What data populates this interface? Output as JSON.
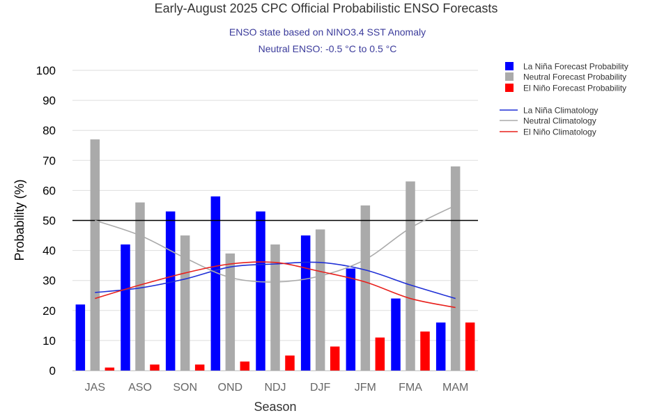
{
  "chart_data": {
    "type": "bar",
    "title": "Early-August 2025 CPC Official Probabilistic ENSO Forecasts",
    "subtitle_lines": [
      "ENSO state based on NINO3.4 SST Anomaly",
      "Neutral ENSO: -0.5 °C to 0.5 °C"
    ],
    "xlabel": "Season",
    "ylabel": "Probability (%)",
    "ylim": [
      0,
      100
    ],
    "yticks": [
      0,
      10,
      20,
      30,
      40,
      50,
      60,
      70,
      80,
      90,
      100
    ],
    "reference_line": 50,
    "categories": [
      "JAS",
      "ASO",
      "SON",
      "OND",
      "NDJ",
      "DJF",
      "JFM",
      "FMA",
      "MAM"
    ],
    "series": [
      {
        "name": "La Niña Forecast Probability",
        "kind": "bar",
        "color": "#0000ff",
        "values": [
          22,
          42,
          53,
          58,
          53,
          45,
          34,
          24,
          16
        ]
      },
      {
        "name": "Neutral Forecast Probability",
        "kind": "bar",
        "color": "#aaaaaa",
        "values": [
          77,
          56,
          45,
          39,
          42,
          47,
          55,
          63,
          68
        ]
      },
      {
        "name": "El Niño Forecast Probability",
        "kind": "bar",
        "color": "#ff0000",
        "values": [
          1,
          2,
          2,
          3,
          5,
          8,
          11,
          13,
          16
        ]
      }
    ],
    "climatology": [
      {
        "name": "La Niña Climatology",
        "kind": "line",
        "color": "#1f2fd6",
        "values": [
          26,
          27.5,
          30.5,
          34.5,
          35.5,
          36,
          33.5,
          28.5,
          24
        ]
      },
      {
        "name": "Neutral Climatology",
        "kind": "line",
        "color": "#aaaaaa",
        "values": [
          50,
          45,
          37.5,
          31,
          29.5,
          31.5,
          37,
          47.5,
          55
        ]
      },
      {
        "name": "El Niño Climatology",
        "kind": "line",
        "color": "#e8201c",
        "values": [
          24,
          28.5,
          32.5,
          35.5,
          36,
          33,
          29.5,
          24,
          21
        ]
      }
    ],
    "legend_position": "top-right"
  }
}
